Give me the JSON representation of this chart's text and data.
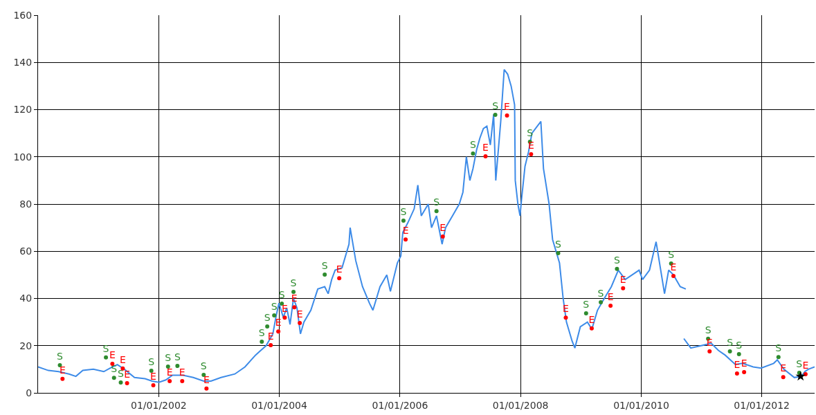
{
  "chart_data": {
    "type": "line",
    "xlim": [
      "2000-01-01",
      "2012-11-16"
    ],
    "xticks": [
      {
        "value": "2002-01-01",
        "label": "01/01/2002"
      },
      {
        "value": "2004-01-01",
        "label": "01/01/2004"
      },
      {
        "value": "2006-01-01",
        "label": "01/01/2006"
      },
      {
        "value": "2008-01-01",
        "label": "01/01/2008"
      },
      {
        "value": "2010-01-01",
        "label": "01/01/2010"
      },
      {
        "value": "2012-01-01",
        "label": "01/01/2012"
      }
    ],
    "ylim": [
      0,
      160
    ],
    "yticks": [
      0,
      20,
      40,
      60,
      80,
      100,
      120,
      140,
      160
    ],
    "grid": true,
    "series": [
      {
        "color": "#3d8be8",
        "x": [
          "2000-01-01",
          "2000-03-03",
          "2000-05-04",
          "2000-07-06",
          "2000-08-17",
          "2000-09-28",
          "2000-12-01",
          "2001-02-02",
          "2001-03-13",
          "2001-04-25",
          "2001-06-07",
          "2001-08-07",
          "2001-10-10",
          "2001-11-22",
          "2002-01-02",
          "2002-02-13",
          "2002-03-25",
          "2002-05-28",
          "2002-07-29",
          "2002-09-30",
          "2002-11-13",
          "2003-01-13",
          "2003-04-07",
          "2003-06-07",
          "2003-08-10",
          "2003-10-13",
          "2003-11-23",
          "2003-12-14",
          "2003-12-30",
          "2004-01-25",
          "2004-02-15",
          "2004-03-06",
          "2004-03-27",
          "2004-04-17",
          "2004-05-08",
          "2004-05-29",
          "2004-07-10",
          "2004-08-21",
          "2004-10-02",
          "2004-10-23",
          "2004-11-13",
          "2004-12-04",
          "2005-01-15",
          "2005-02-26",
          "2005-03-05",
          "2005-04-08",
          "2005-05-19",
          "2005-06-30",
          "2005-07-21",
          "2005-09-02",
          "2005-10-13",
          "2005-11-04",
          "2005-12-16",
          "2006-01-06",
          "2006-01-18",
          "2006-02-17",
          "2006-03-28",
          "2006-04-19",
          "2006-05-10",
          "2006-06-21",
          "2006-07-11",
          "2006-08-10",
          "2006-09-13",
          "2006-10-04",
          "2006-11-15",
          "2006-12-26",
          "2007-01-17",
          "2007-02-07",
          "2007-02-28",
          "2007-03-19",
          "2007-04-10",
          "2007-04-30",
          "2007-05-21",
          "2007-06-11",
          "2007-07-02",
          "2007-07-22",
          "2007-08-04",
          "2007-09-03",
          "2007-09-24",
          "2007-10-15",
          "2007-11-05",
          "2007-11-26",
          "2007-11-30",
          "2007-12-16",
          "2007-12-29",
          "2008-01-07",
          "2008-01-28",
          "2008-02-18",
          "2008-03-10",
          "2008-05-03",
          "2008-05-19",
          "2008-06-22",
          "2008-07-13",
          "2008-08-24",
          "2008-09-15",
          "2008-10-05",
          "2008-11-08",
          "2008-11-25",
          "2008-12-28",
          "2009-02-09",
          "2009-03-08",
          "2009-04-11",
          "2009-05-22",
          "2009-07-04",
          "2009-08-15",
          "2009-09-26",
          "2009-11-07",
          "2009-12-19",
          "2010-01-09",
          "2010-02-20",
          "2010-04-01",
          "2010-04-22",
          "2010-05-22",
          "2010-06-16",
          "2010-07-15",
          "2010-08-25",
          "2010-09-28"
        ],
        "values": [
          11,
          9.5,
          9,
          8,
          7,
          9.5,
          10,
          9,
          10.5,
          12,
          10,
          6.5,
          6,
          5,
          4.5,
          5.5,
          7.5,
          7.5,
          6.5,
          5,
          5,
          6.5,
          8,
          11,
          16,
          20,
          25,
          33,
          38,
          32,
          36,
          29,
          40,
          36,
          25,
          30,
          35,
          44,
          45,
          42,
          48,
          52,
          53,
          63,
          70,
          56,
          45,
          38,
          35,
          45,
          50,
          43,
          55,
          58,
          68,
          72,
          78,
          88,
          75,
          80,
          70,
          75,
          63,
          70,
          75,
          80,
          85,
          100,
          90,
          95,
          103,
          108,
          112,
          113,
          105,
          118,
          90,
          115,
          137,
          135,
          130,
          122,
          90,
          80,
          75,
          82,
          96,
          102,
          110,
          115,
          95,
          80,
          65,
          55,
          40,
          30,
          22,
          19,
          28,
          30,
          27,
          35,
          40,
          45,
          52,
          48,
          50,
          52,
          48,
          52,
          64,
          55,
          42,
          52,
          50,
          45,
          44
        ]
      },
      {
        "color": "#3d8be8",
        "x": [
          "2010-09-16",
          "2010-10-28",
          "2010-12-30",
          "2011-03-01",
          "2011-04-13",
          "2011-05-24",
          "2011-07-25",
          "2011-09-07",
          "2011-11-10",
          "2011-12-28",
          "2012-03-13",
          "2012-04-04",
          "2012-05-14",
          "2012-07-16",
          "2012-08-28",
          "2012-09-18",
          "2012-10-09",
          "2012-11-16"
        ],
        "values": [
          23,
          19,
          20,
          21,
          18,
          16,
          12,
          12.5,
          11,
          10.5,
          12.5,
          14,
          10,
          6.5,
          7,
          9,
          10,
          11
        ]
      },
      {
        "type": "scatter",
        "color": "#2e8b2e",
        "marker": "circle",
        "x": [
          "2000-05-12",
          "2001-02-15",
          "2001-04-05",
          "2001-05-16",
          "2001-11-17",
          "2002-02-26",
          "2002-04-24",
          "2002-09-30",
          "2003-09-17",
          "2003-10-20",
          "2003-12-01",
          "2004-01-16",
          "2004-03-27",
          "2004-10-02",
          "2006-01-22",
          "2006-08-10",
          "2007-03-19",
          "2007-08-01",
          "2008-02-27",
          "2008-08-16",
          "2009-02-01",
          "2009-05-01",
          "2009-08-07",
          "2010-07-01",
          "2011-02-10",
          "2011-06-22",
          "2011-08-16",
          "2012-04-11",
          "2012-08-15"
        ],
        "values": [
          11.7,
          15,
          6.4,
          4.4,
          9.4,
          11.1,
          11.4,
          7.6,
          21.7,
          28.1,
          32.8,
          37.8,
          42.8,
          50.1,
          73,
          77,
          101.4,
          117.8,
          106.4,
          59.2,
          33.7,
          38.4,
          52.5,
          54.8,
          22.9,
          17.6,
          16.4,
          15.2,
          8.5
        ],
        "value_labels": [
          "S",
          "S",
          "S",
          "S",
          "S",
          "S",
          "S",
          "S",
          "S",
          "S",
          "S",
          "S",
          "S",
          "S",
          "S",
          "S",
          "S",
          "S",
          "S",
          "S",
          "S",
          "S",
          "S",
          "S",
          "S",
          "S",
          "S",
          "S",
          "S"
        ]
      },
      {
        "type": "scatter",
        "color": "#ff0000",
        "marker": "circle",
        "x": [
          "2000-05-28",
          "2001-03-26",
          "2001-05-28",
          "2001-06-23",
          "2001-11-29",
          "2002-03-08",
          "2002-05-23",
          "2002-10-17",
          "2003-11-10",
          "2003-12-26",
          "2004-02-03",
          "2004-04-01",
          "2004-05-04",
          "2004-12-29",
          "2006-02-04",
          "2006-09-17",
          "2007-06-03",
          "2007-10-11",
          "2008-03-05",
          "2008-10-01",
          "2009-03-07",
          "2009-06-29",
          "2009-09-13",
          "2010-07-15",
          "2011-02-19",
          "2011-08-04",
          "2011-09-16",
          "2012-05-10",
          "2012-09-22"
        ],
        "values": [
          5.9,
          12.3,
          10.3,
          4.1,
          3.2,
          5,
          5,
          1.8,
          20.2,
          26,
          31.9,
          36.3,
          29.6,
          48.6,
          65,
          66.2,
          100.2,
          117.5,
          101.1,
          31.9,
          27.3,
          36.9,
          44.3,
          49.5,
          17.6,
          8.2,
          8.8,
          6.7,
          7.9
        ],
        "value_labels": [
          "E",
          "E",
          "E",
          "E",
          "E",
          "E",
          "E",
          "E",
          "E",
          "E",
          "E",
          "E",
          "E",
          "E",
          "E",
          "E",
          "E",
          "E",
          "E",
          "E",
          "E",
          "E",
          "E",
          "E",
          "E",
          "E",
          "E",
          "E",
          "E"
        ]
      },
      {
        "type": "scatter",
        "color": "#000000",
        "marker": "star",
        "x": [
          "2012-08-23"
        ],
        "values": [
          7
        ]
      }
    ]
  }
}
